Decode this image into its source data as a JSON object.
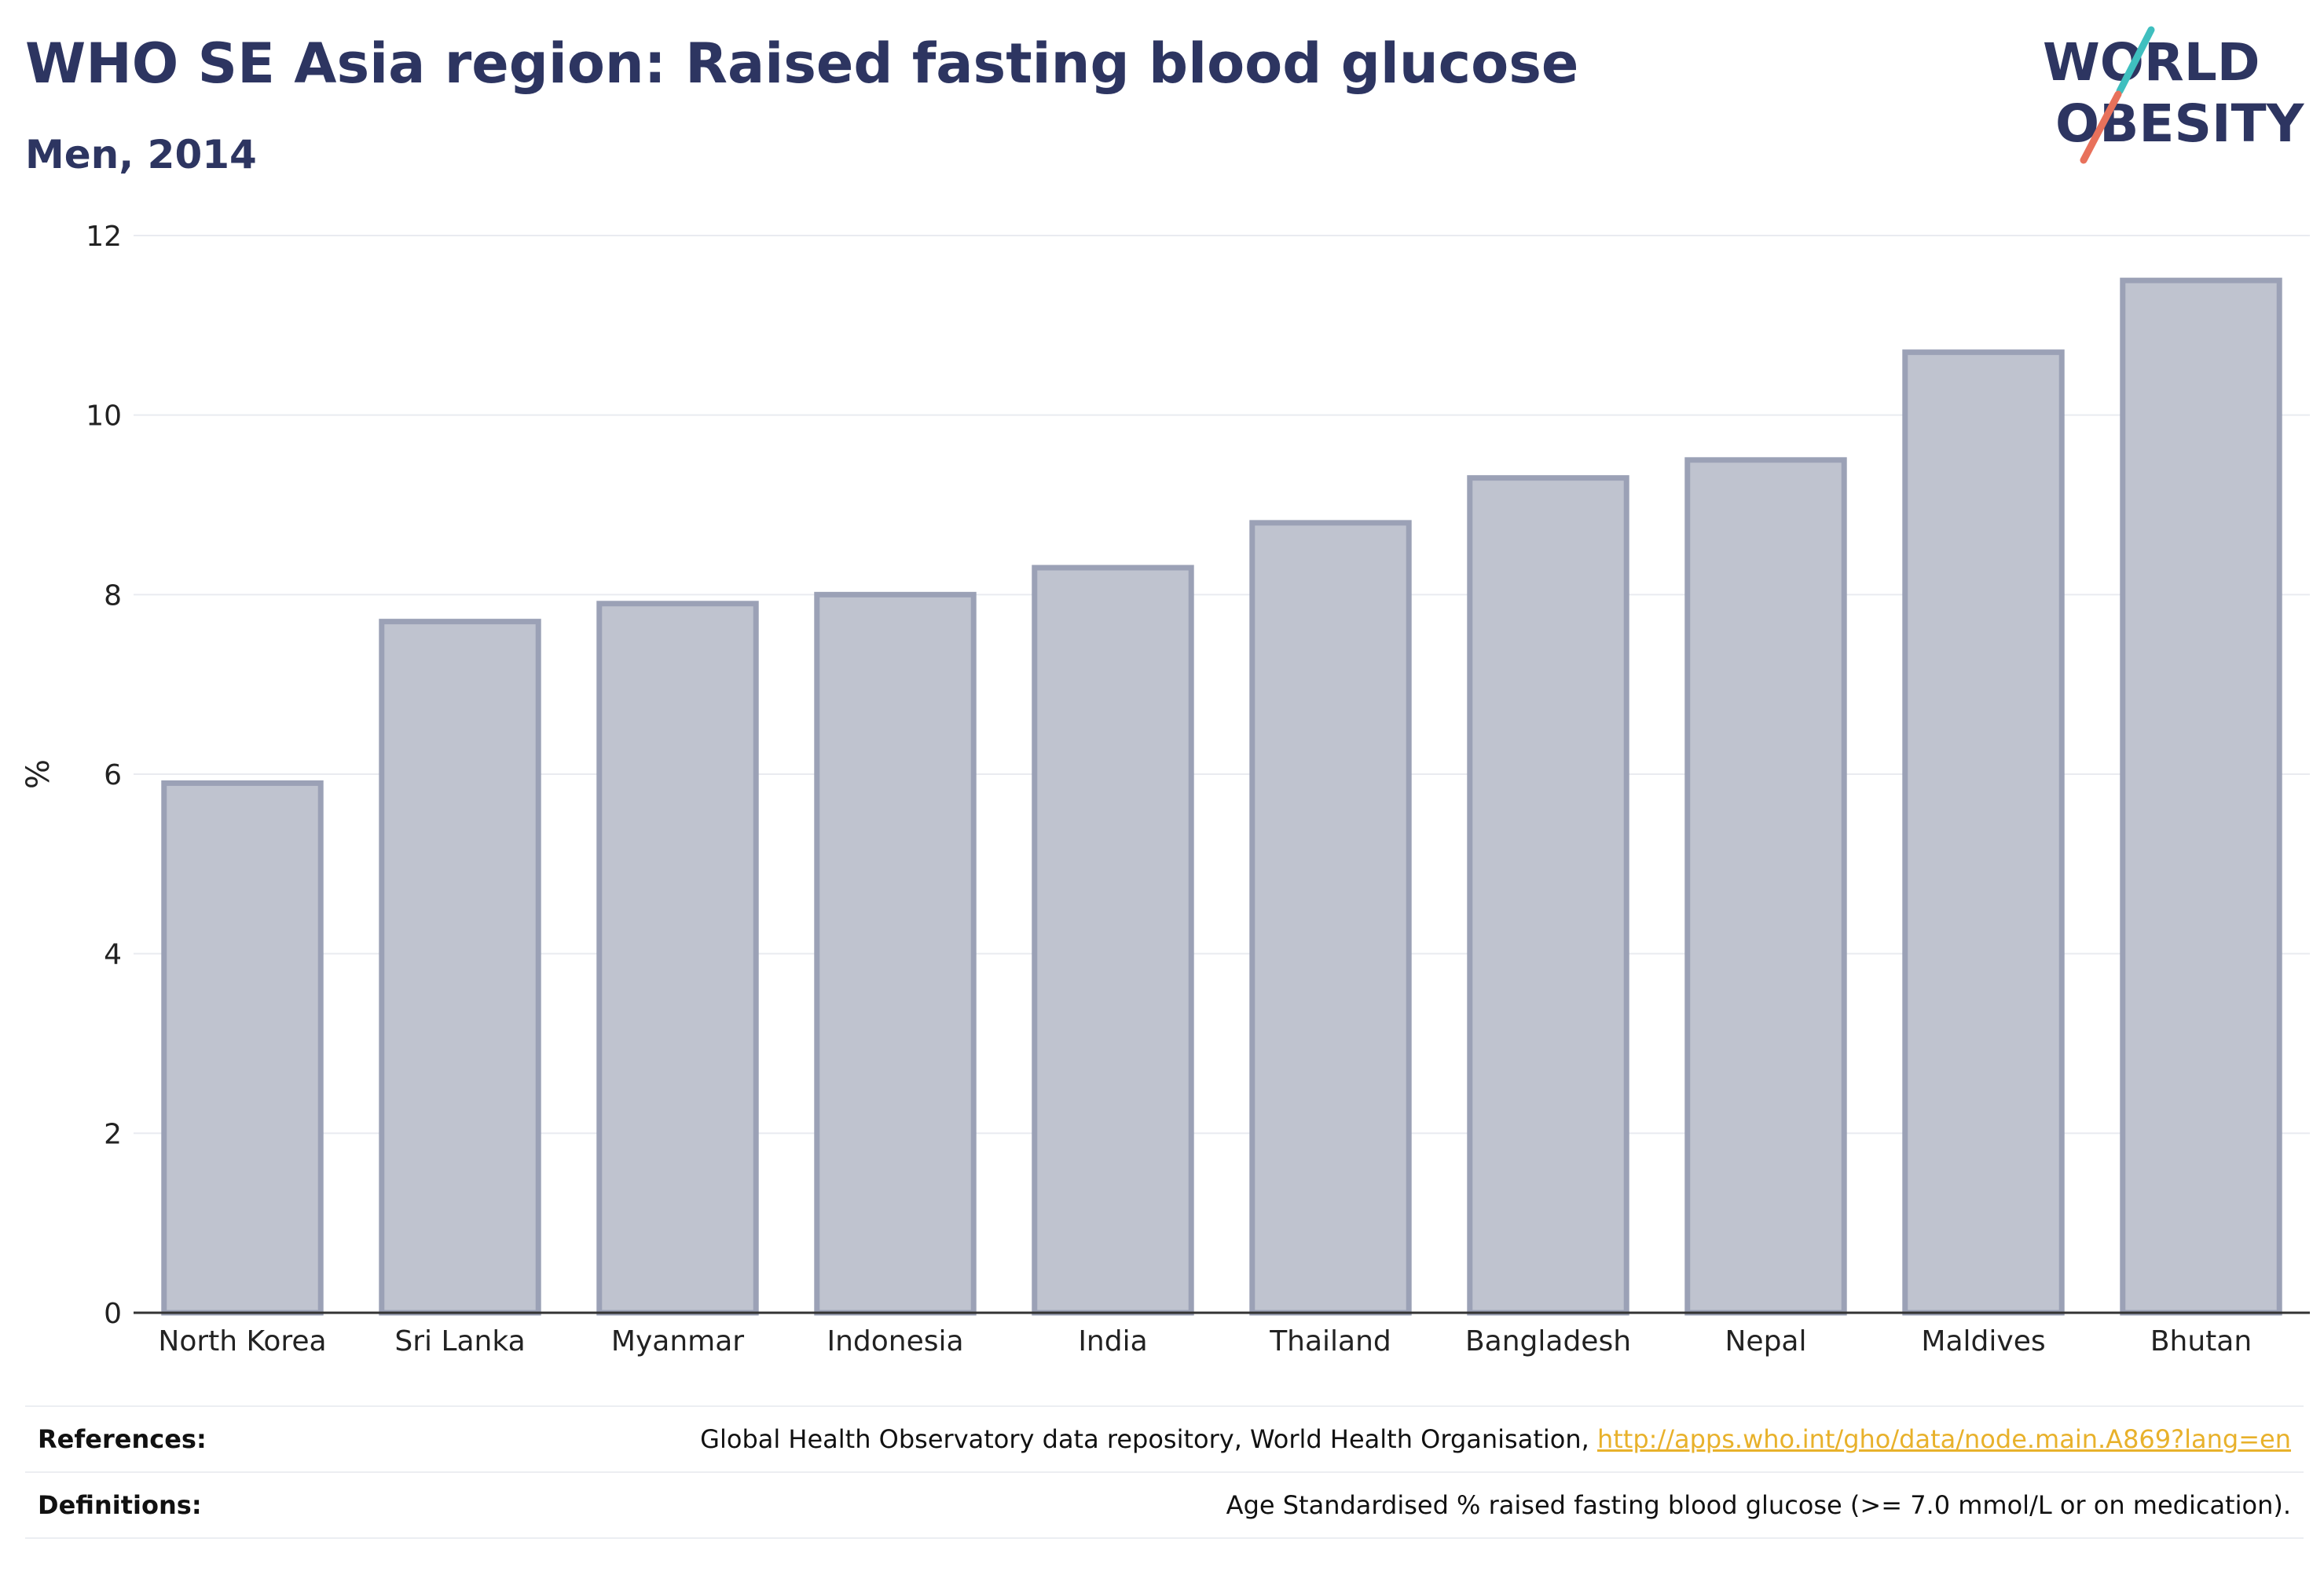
{
  "title": "WHO SE Asia region: Raised fasting blood glucose",
  "subtitle": "Men, 2014",
  "logo": {
    "line1": "WORLD",
    "line2": "OBESITY"
  },
  "chart_data": {
    "type": "bar",
    "categories": [
      "North Korea",
      "Sri Lanka",
      "Myanmar",
      "Indonesia",
      "India",
      "Thailand",
      "Bangladesh",
      "Nepal",
      "Maldives",
      "Bhutan"
    ],
    "values": [
      5.9,
      7.7,
      7.9,
      8.0,
      8.3,
      8.8,
      9.3,
      9.5,
      10.7,
      11.5
    ],
    "ylabel": "%",
    "ylim": [
      0,
      12
    ],
    "yticks": [
      0,
      2,
      4,
      6,
      8,
      10,
      12
    ],
    "grid": true,
    "bar_color": "#bfc3cf",
    "bar_edge_color": "#9ba1b6"
  },
  "footer": {
    "references_label": "References:",
    "references_text": "Global Health Observatory data repository, World Health Organisation,",
    "references_link": "http://apps.who.int/gho/data/node.main.A869?lang=en",
    "definitions_label": "Definitions:",
    "definitions_text": "Age Standardised % raised fasting blood glucose (>= 7.0 mmol/L or on medication)."
  },
  "colors": {
    "title": "#2d3561",
    "link": "#e8b12b",
    "logo_teal": "#3fbfbf",
    "logo_red": "#e8715b"
  }
}
